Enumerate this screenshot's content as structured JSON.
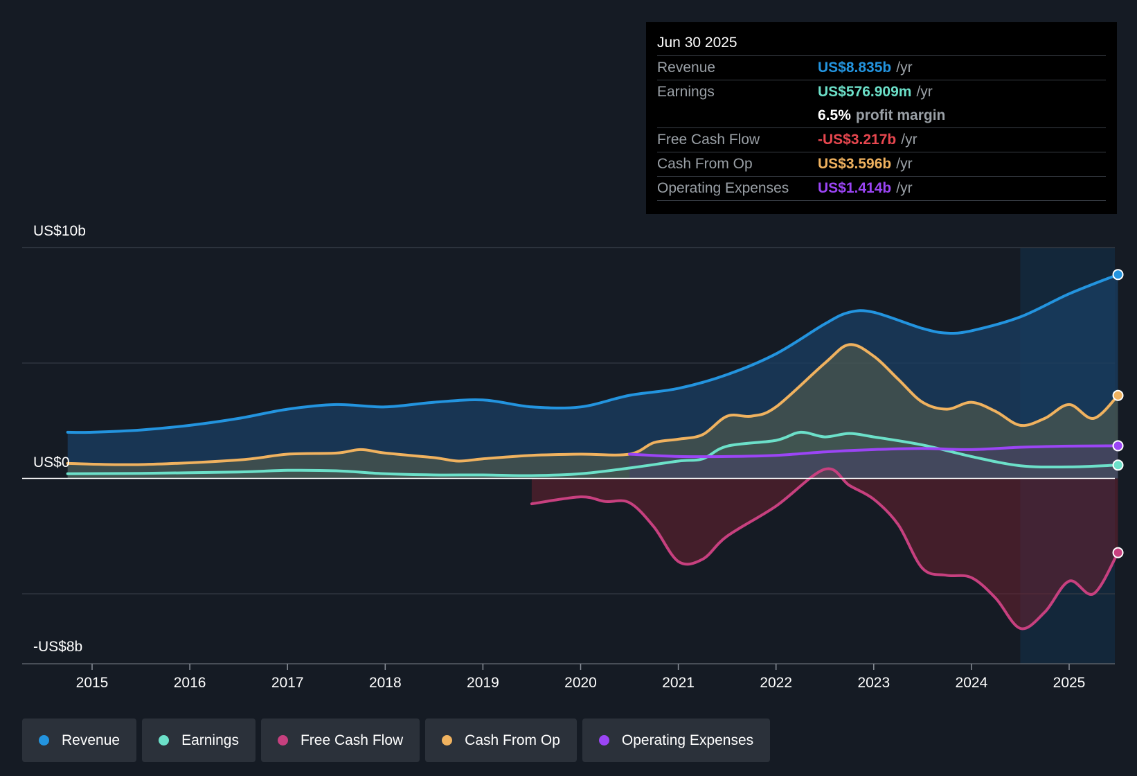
{
  "tooltip": {
    "date": "Jun 30 2025",
    "rows": [
      {
        "label": "Revenue",
        "value": "US$8.835b",
        "unit": "/yr",
        "color": "#2394df"
      },
      {
        "label": "Earnings",
        "value": "US$576.909m",
        "unit": "/yr",
        "color": "#6ce0c9"
      },
      {
        "label": "",
        "value": "6.5%",
        "unit": "profit margin",
        "color": "#ffffff"
      },
      {
        "label": "Free Cash Flow",
        "value": "-US$3.217b",
        "unit": "/yr",
        "color": "#e8474f"
      },
      {
        "label": "Cash From Op",
        "value": "US$3.596b",
        "unit": "/yr",
        "color": "#f0b25f"
      },
      {
        "label": "Operating Expenses",
        "value": "US$1.414b",
        "unit": "/yr",
        "color": "#9b45f5"
      }
    ]
  },
  "legend": [
    {
      "label": "Revenue",
      "color": "#2394df"
    },
    {
      "label": "Earnings",
      "color": "#6ce0c9"
    },
    {
      "label": "Free Cash Flow",
      "color": "#c7407f"
    },
    {
      "label": "Cash From Op",
      "color": "#f0b25f"
    },
    {
      "label": "Operating Expenses",
      "color": "#9b45f5"
    }
  ],
  "chart_data": {
    "type": "area",
    "y_axis_labels": [
      "US$10b",
      "US$0",
      "-US$8b"
    ],
    "ylim": [
      -8,
      10
    ],
    "xlim": [
      2014.7,
      2025.5
    ],
    "x_ticks": [
      "2015",
      "2016",
      "2017",
      "2018",
      "2019",
      "2020",
      "2021",
      "2022",
      "2023",
      "2024",
      "2025"
    ],
    "x_tick_values": [
      2015,
      2016,
      2017,
      2018,
      2019,
      2020,
      2021,
      2022,
      2023,
      2024,
      2025
    ],
    "gridlines_y": [
      10,
      5,
      0,
      -5
    ],
    "highlight_from": 2024.5,
    "grid": true,
    "series": [
      {
        "name": "Revenue",
        "color": "#2394df",
        "x": [
          2014.75,
          2015.0,
          2015.5,
          2016.0,
          2016.5,
          2017.0,
          2017.5,
          2018.0,
          2018.5,
          2019.0,
          2019.5,
          2020.0,
          2020.5,
          2021.0,
          2021.5,
          2022.0,
          2022.5,
          2022.75,
          2023.0,
          2023.5,
          2023.75,
          2024.0,
          2024.5,
          2025.0,
          2025.5
        ],
        "values": [
          2.0,
          2.0,
          2.1,
          2.3,
          2.6,
          3.0,
          3.2,
          3.1,
          3.3,
          3.4,
          3.1,
          3.1,
          3.6,
          3.9,
          4.5,
          5.4,
          6.7,
          7.2,
          7.2,
          6.5,
          6.3,
          6.4,
          7.0,
          8.0,
          8.835
        ]
      },
      {
        "name": "Earnings",
        "color": "#6ce0c9",
        "x": [
          2014.75,
          2015.5,
          2016.5,
          2017.0,
          2017.5,
          2018.0,
          2018.5,
          2019.0,
          2019.5,
          2020.0,
          2020.5,
          2021.0,
          2021.25,
          2021.5,
          2022.0,
          2022.25,
          2022.5,
          2022.75,
          2023.0,
          2023.5,
          2024.0,
          2024.5,
          2025.0,
          2025.5
        ],
        "values": [
          0.2,
          0.22,
          0.28,
          0.35,
          0.33,
          0.2,
          0.15,
          0.15,
          0.12,
          0.2,
          0.45,
          0.75,
          0.85,
          1.4,
          1.65,
          2.0,
          1.8,
          1.95,
          1.8,
          1.45,
          0.95,
          0.55,
          0.5,
          0.577
        ]
      },
      {
        "name": "Free Cash Flow",
        "color": "#c7407f",
        "x": [
          2019.5,
          2020.0,
          2020.25,
          2020.5,
          2020.75,
          2021.0,
          2021.25,
          2021.5,
          2022.0,
          2022.5,
          2022.75,
          2023.0,
          2023.25,
          2023.5,
          2023.75,
          2024.0,
          2024.25,
          2024.5,
          2024.75,
          2025.0,
          2025.25,
          2025.5
        ],
        "values": [
          -1.1,
          -0.8,
          -1.0,
          -1.05,
          -2.1,
          -3.6,
          -3.5,
          -2.5,
          -1.2,
          0.4,
          -0.3,
          -0.9,
          -2.0,
          -3.9,
          -4.2,
          -4.3,
          -5.2,
          -6.5,
          -5.8,
          -4.45,
          -5.0,
          -3.217
        ]
      },
      {
        "name": "Cash From Op",
        "color": "#f0b25f",
        "x": [
          2014.75,
          2015.5,
          2016.5,
          2017.0,
          2017.5,
          2017.75,
          2018.0,
          2018.5,
          2018.75,
          2019.0,
          2019.5,
          2020.0,
          2020.5,
          2020.75,
          2021.0,
          2021.25,
          2021.5,
          2021.75,
          2022.0,
          2022.5,
          2022.75,
          2023.0,
          2023.25,
          2023.5,
          2023.75,
          2024.0,
          2024.25,
          2024.5,
          2024.75,
          2025.0,
          2025.25,
          2025.5
        ],
        "values": [
          0.65,
          0.6,
          0.8,
          1.05,
          1.1,
          1.25,
          1.1,
          0.9,
          0.75,
          0.85,
          1.0,
          1.05,
          1.05,
          1.55,
          1.7,
          1.9,
          2.7,
          2.7,
          3.1,
          5.0,
          5.8,
          5.3,
          4.3,
          3.3,
          3.0,
          3.3,
          2.9,
          2.3,
          2.6,
          3.2,
          2.6,
          3.596
        ]
      },
      {
        "name": "Operating Expenses",
        "color": "#9b45f5",
        "x": [
          2020.5,
          2021.0,
          2021.5,
          2022.0,
          2022.5,
          2023.0,
          2023.5,
          2024.0,
          2024.5,
          2025.0,
          2025.5
        ],
        "values": [
          1.05,
          0.95,
          0.95,
          1.0,
          1.15,
          1.25,
          1.3,
          1.25,
          1.35,
          1.4,
          1.414
        ]
      }
    ]
  }
}
